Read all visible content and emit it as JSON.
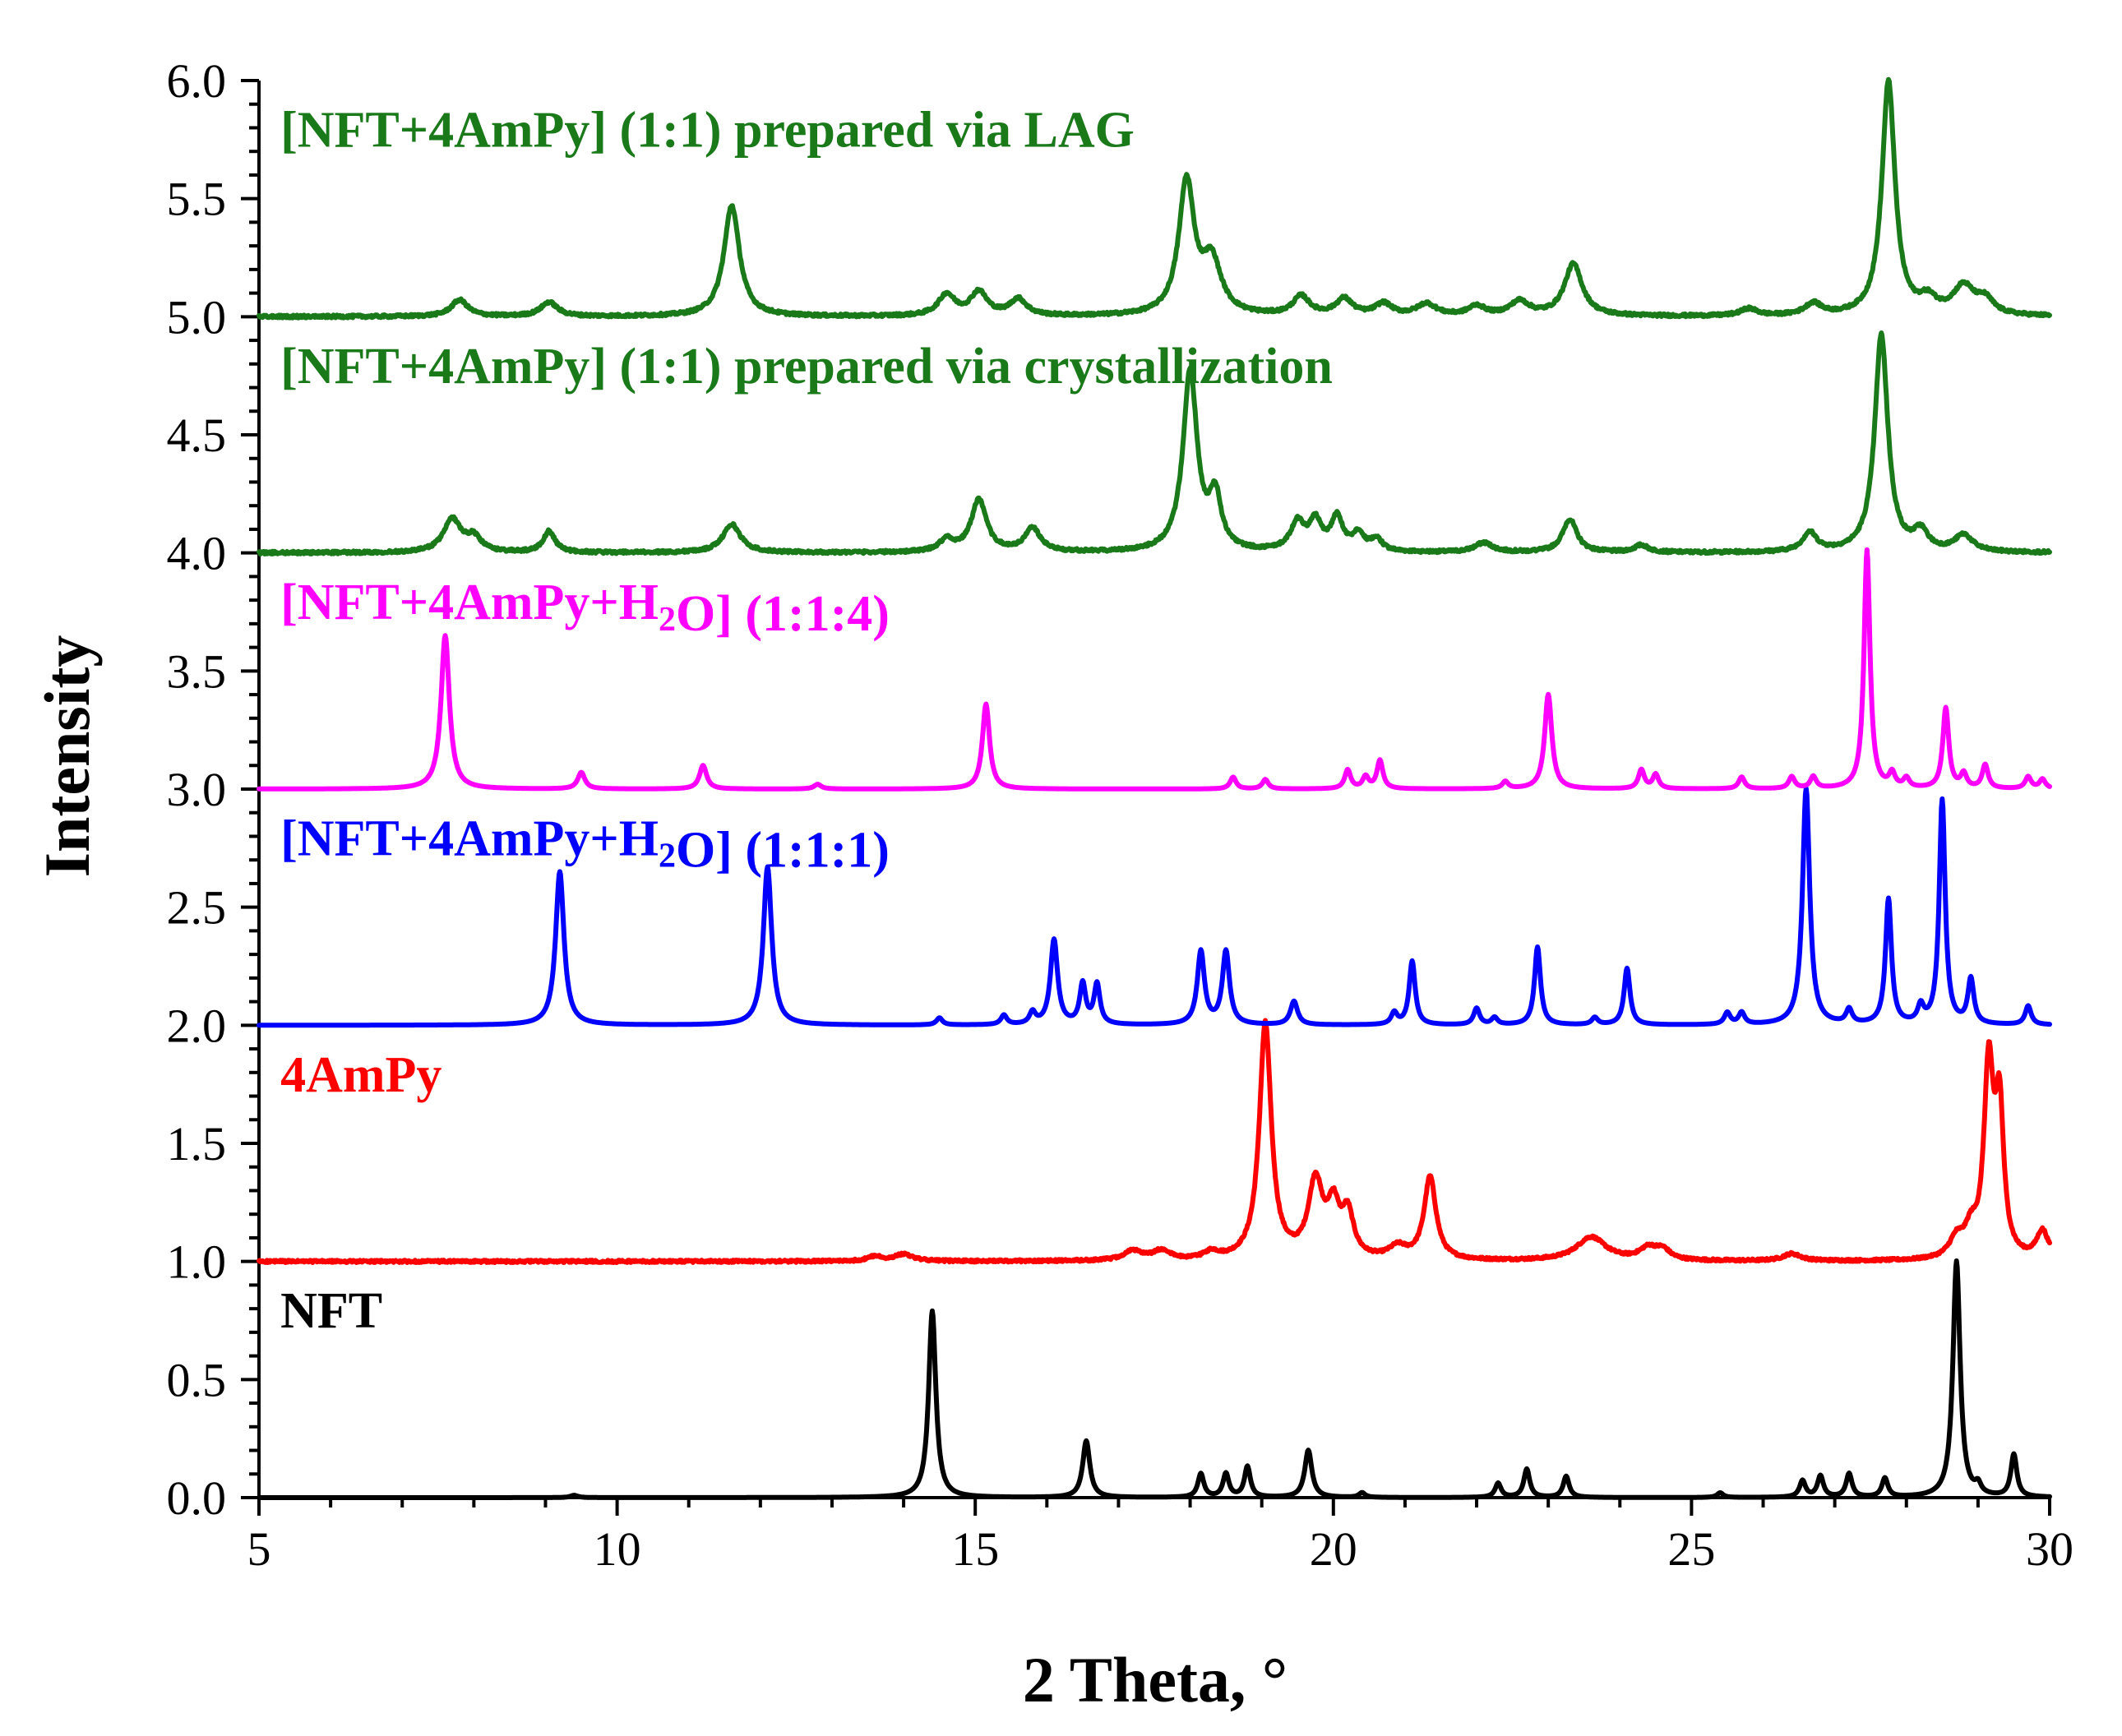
{
  "chart_data": {
    "type": "line",
    "title": "",
    "xlabel": "2 Theta, °",
    "ylabel": "Intensity",
    "xlim": [
      5,
      30
    ],
    "ylim": [
      0,
      6
    ],
    "xticks": [
      5,
      10,
      15,
      20,
      25,
      30
    ],
    "xtick_labels": [
      "5",
      "10",
      "15",
      "20",
      "25",
      "30"
    ],
    "yticks": [
      0,
      0.5,
      1,
      1.5,
      2,
      2.5,
      3,
      3.5,
      4,
      4.5,
      5,
      5.5,
      6
    ],
    "ytick_labels": [
      "0.0",
      "0.5",
      "1.0",
      "1.5",
      "2.0",
      "2.5",
      "3.0",
      "3.5",
      "4.0",
      "4.5",
      "5.0",
      "5.5",
      "6.0"
    ],
    "grid": false,
    "series": [
      {
        "id": "nft",
        "name": "NFT",
        "label_parts": [
          {
            "text": "NFT"
          }
        ],
        "label_pos": [
          5.3,
          0.72
        ],
        "color": "#000000",
        "baseline": 0.0,
        "noise": 0.0,
        "peaks": [
          [
            9.4,
            0.01,
            0.06
          ],
          [
            14.4,
            0.79,
            0.06
          ],
          [
            16.55,
            0.24,
            0.06
          ],
          [
            18.15,
            0.1,
            0.05
          ],
          [
            18.5,
            0.1,
            0.05
          ],
          [
            18.8,
            0.13,
            0.05
          ],
          [
            19.65,
            0.2,
            0.06
          ],
          [
            20.4,
            0.02,
            0.05
          ],
          [
            22.3,
            0.06,
            0.05
          ],
          [
            22.7,
            0.12,
            0.05
          ],
          [
            23.25,
            0.09,
            0.05
          ],
          [
            25.4,
            0.02,
            0.05
          ],
          [
            26.55,
            0.07,
            0.05
          ],
          [
            26.8,
            0.09,
            0.05
          ],
          [
            27.2,
            0.1,
            0.05
          ],
          [
            27.7,
            0.08,
            0.05
          ],
          [
            28.7,
            1.0,
            0.06
          ],
          [
            29.0,
            0.04,
            0.05
          ],
          [
            29.5,
            0.18,
            0.05
          ]
        ]
      },
      {
        "id": "ampy",
        "name": "4AmPy",
        "label_parts": [
          {
            "text": "4AmPy"
          }
        ],
        "label_pos": [
          5.3,
          1.72
        ],
        "color": "#ff0000",
        "baseline": 1.0,
        "noise": 0.005,
        "peaks": [
          [
            13.6,
            0.02,
            0.12
          ],
          [
            14.0,
            0.03,
            0.15
          ],
          [
            17.2,
            0.04,
            0.15
          ],
          [
            17.6,
            0.04,
            0.15
          ],
          [
            18.3,
            0.03,
            0.12
          ],
          [
            19.05,
            1.0,
            0.1
          ],
          [
            19.75,
            0.32,
            0.12
          ],
          [
            20.0,
            0.2,
            0.1
          ],
          [
            20.2,
            0.18,
            0.1
          ],
          [
            21.35,
            0.35,
            0.1
          ],
          [
            20.9,
            0.05,
            0.15
          ],
          [
            23.6,
            0.1,
            0.25
          ],
          [
            24.4,
            0.05,
            0.15
          ],
          [
            24.6,
            0.04,
            0.12
          ],
          [
            26.4,
            0.03,
            0.15
          ],
          [
            28.7,
            0.08,
            0.12
          ],
          [
            28.9,
            0.1,
            0.1
          ],
          [
            29.15,
            0.8,
            0.08
          ],
          [
            29.3,
            0.6,
            0.07
          ],
          [
            29.9,
            0.12,
            0.1
          ]
        ]
      },
      {
        "id": "h2o-111",
        "name": "[NFT+4AmPy+H2O] (1:1:1)",
        "label_parts": [
          {
            "text": "[NFT+4AmPy+H"
          },
          {
            "text": "2",
            "sub": true
          },
          {
            "text": "O] (1:1:1)"
          }
        ],
        "label_pos": [
          5.3,
          2.72
        ],
        "color": "#0000ff",
        "baseline": 2.0,
        "noise": 0.0,
        "peaks": [
          [
            9.2,
            0.65,
            0.07
          ],
          [
            12.1,
            0.67,
            0.07
          ],
          [
            14.5,
            0.03,
            0.05
          ],
          [
            15.4,
            0.04,
            0.05
          ],
          [
            15.8,
            0.05,
            0.05
          ],
          [
            16.1,
            0.36,
            0.06
          ],
          [
            16.5,
            0.17,
            0.05
          ],
          [
            16.7,
            0.17,
            0.05
          ],
          [
            18.15,
            0.31,
            0.06
          ],
          [
            18.5,
            0.31,
            0.06
          ],
          [
            19.45,
            0.1,
            0.06
          ],
          [
            20.85,
            0.05,
            0.05
          ],
          [
            21.1,
            0.27,
            0.05
          ],
          [
            22.0,
            0.07,
            0.05
          ],
          [
            22.25,
            0.03,
            0.05
          ],
          [
            22.85,
            0.33,
            0.05
          ],
          [
            23.65,
            0.03,
            0.05
          ],
          [
            24.1,
            0.24,
            0.05
          ],
          [
            25.5,
            0.05,
            0.05
          ],
          [
            25.7,
            0.05,
            0.05
          ],
          [
            26.6,
            1.0,
            0.06
          ],
          [
            27.2,
            0.06,
            0.05
          ],
          [
            27.75,
            0.53,
            0.05
          ],
          [
            28.2,
            0.07,
            0.05
          ],
          [
            28.5,
            0.95,
            0.05
          ],
          [
            28.9,
            0.19,
            0.05
          ],
          [
            29.7,
            0.08,
            0.05
          ]
        ]
      },
      {
        "id": "h2o-114",
        "name": "[NFT+4AmPy+H2O] (1:1:4)",
        "label_parts": [
          {
            "text": "[NFT+4AmPy+H"
          },
          {
            "text": "2",
            "sub": true
          },
          {
            "text": "O] (1:1:4)"
          }
        ],
        "label_pos": [
          5.3,
          3.72
        ],
        "color": "#ff00ff",
        "baseline": 3.0,
        "noise": 0.0,
        "peaks": [
          [
            7.6,
            0.65,
            0.07
          ],
          [
            9.5,
            0.07,
            0.06
          ],
          [
            11.2,
            0.1,
            0.06
          ],
          [
            12.8,
            0.02,
            0.06
          ],
          [
            15.15,
            0.36,
            0.06
          ],
          [
            18.6,
            0.05,
            0.05
          ],
          [
            19.05,
            0.04,
            0.05
          ],
          [
            20.2,
            0.08,
            0.05
          ],
          [
            20.45,
            0.05,
            0.05
          ],
          [
            20.65,
            0.12,
            0.05
          ],
          [
            22.4,
            0.03,
            0.05
          ],
          [
            23.0,
            0.4,
            0.06
          ],
          [
            24.3,
            0.08,
            0.05
          ],
          [
            24.5,
            0.06,
            0.05
          ],
          [
            25.7,
            0.05,
            0.05
          ],
          [
            26.4,
            0.05,
            0.05
          ],
          [
            26.7,
            0.05,
            0.05
          ],
          [
            27.45,
            1.01,
            0.05
          ],
          [
            27.8,
            0.06,
            0.05
          ],
          [
            28.0,
            0.04,
            0.05
          ],
          [
            28.55,
            0.34,
            0.05
          ],
          [
            28.8,
            0.06,
            0.05
          ],
          [
            29.1,
            0.1,
            0.05
          ],
          [
            29.7,
            0.05,
            0.05
          ],
          [
            29.9,
            0.04,
            0.05
          ]
        ]
      },
      {
        "id": "cryst",
        "name": "[NFT+4AmPy] (1:1) prepared via crystallization",
        "label_parts": [
          {
            "text": "[NFT+4AmPy] (1:1) prepared via crystallization"
          }
        ],
        "label_pos": [
          5.3,
          4.72
        ],
        "color": "#1a7a1a",
        "baseline": 4.0,
        "noise": 0.006,
        "peaks": [
          [
            7.7,
            0.14,
            0.15
          ],
          [
            8.0,
            0.06,
            0.12
          ],
          [
            9.05,
            0.09,
            0.1
          ],
          [
            11.6,
            0.12,
            0.15
          ],
          [
            14.6,
            0.05,
            0.12
          ],
          [
            15.05,
            0.22,
            0.13
          ],
          [
            15.8,
            0.1,
            0.13
          ],
          [
            18.0,
            0.76,
            0.12
          ],
          [
            18.35,
            0.22,
            0.1
          ],
          [
            19.5,
            0.12,
            0.12
          ],
          [
            19.75,
            0.12,
            0.1
          ],
          [
            20.05,
            0.14,
            0.1
          ],
          [
            20.35,
            0.07,
            0.1
          ],
          [
            20.6,
            0.05,
            0.1
          ],
          [
            22.1,
            0.04,
            0.15
          ],
          [
            23.3,
            0.14,
            0.12
          ],
          [
            24.3,
            0.03,
            0.12
          ],
          [
            26.65,
            0.08,
            0.12
          ],
          [
            27.65,
            0.92,
            0.11
          ],
          [
            28.2,
            0.08,
            0.12
          ],
          [
            28.8,
            0.07,
            0.15
          ]
        ]
      },
      {
        "id": "lag",
        "name": "[NFT+4AmPy] (1:1) prepared via LAG",
        "label_parts": [
          {
            "text": "[NFT+4AmPy] (1:1) prepared via LAG"
          }
        ],
        "label_pos": [
          5.3,
          5.72
        ],
        "color": "#1a7a1a",
        "baseline": 5.0,
        "noise": 0.006,
        "peaks": [
          [
            7.8,
            0.07,
            0.14
          ],
          [
            9.05,
            0.06,
            0.14
          ],
          [
            11.6,
            0.47,
            0.13
          ],
          [
            14.6,
            0.09,
            0.14
          ],
          [
            15.05,
            0.1,
            0.14
          ],
          [
            15.6,
            0.07,
            0.14
          ],
          [
            17.95,
            0.56,
            0.13
          ],
          [
            18.3,
            0.22,
            0.16
          ],
          [
            19.55,
            0.08,
            0.14
          ],
          [
            20.15,
            0.07,
            0.14
          ],
          [
            20.7,
            0.05,
            0.14
          ],
          [
            21.3,
            0.05,
            0.16
          ],
          [
            22.0,
            0.04,
            0.14
          ],
          [
            22.6,
            0.06,
            0.16
          ],
          [
            23.35,
            0.22,
            0.15
          ],
          [
            25.8,
            0.03,
            0.14
          ],
          [
            26.7,
            0.05,
            0.14
          ],
          [
            27.75,
            0.99,
            0.11
          ],
          [
            28.3,
            0.06,
            0.14
          ],
          [
            28.8,
            0.12,
            0.18
          ],
          [
            29.1,
            0.06,
            0.14
          ]
        ]
      }
    ]
  }
}
